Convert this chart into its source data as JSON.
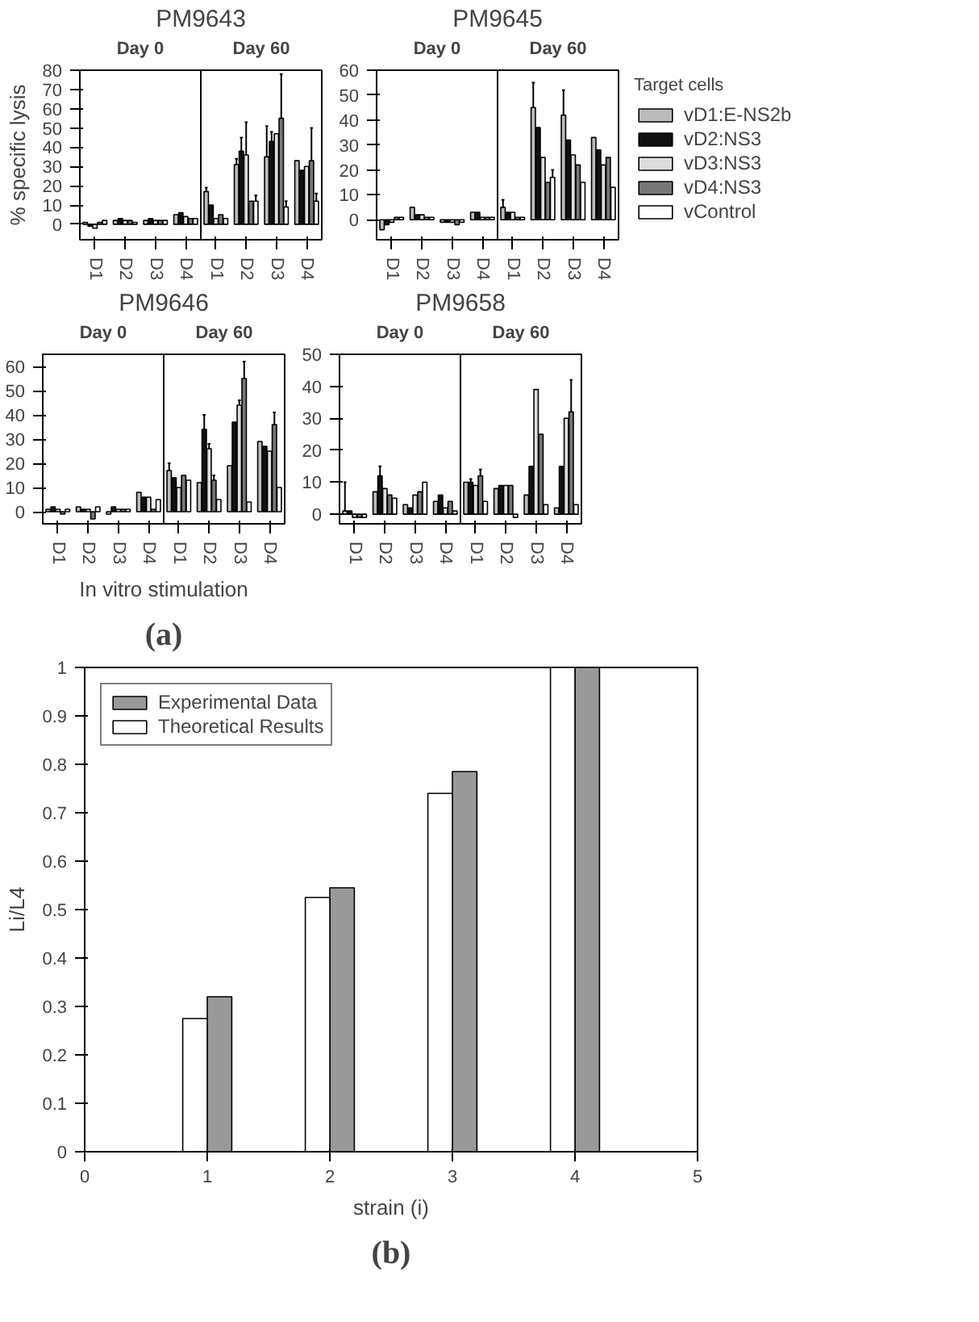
{
  "chart_data": [
    {
      "type": "bar",
      "title": "PM9643",
      "ylabel": "% specific lysis",
      "categories": [
        "D1",
        "D2",
        "D3",
        "D4",
        "D1",
        "D2",
        "D3",
        "D4"
      ],
      "annotations": [
        "Day 0",
        "Day 60"
      ],
      "ylim": [
        -8,
        80
      ],
      "yticks": [
        0,
        10,
        20,
        30,
        40,
        50,
        60,
        70,
        80
      ],
      "legend": false,
      "series": [
        {
          "color": "#bbbbbb",
          "values": [
            1,
            2,
            2,
            5,
            17,
            31,
            35,
            33
          ],
          "errors": [
            null,
            null,
            null,
            null,
            2,
            3,
            16,
            null
          ]
        },
        {
          "color": "#111111",
          "values": [
            -1,
            3,
            3,
            6,
            10,
            38,
            43,
            28
          ],
          "errors": [
            null,
            null,
            null,
            null,
            null,
            7,
            5,
            null
          ]
        },
        {
          "color": "#dddddd",
          "values": [
            -2,
            2,
            2,
            4,
            3,
            36,
            47,
            30
          ],
          "errors": [
            null,
            null,
            null,
            null,
            null,
            17,
            null,
            null
          ]
        },
        {
          "color": "#777777",
          "values": [
            1,
            2,
            2,
            3,
            5,
            12,
            55,
            33
          ],
          "errors": [
            null,
            null,
            null,
            null,
            null,
            null,
            23,
            17
          ]
        },
        {
          "color": "#ffffff",
          "values": [
            2,
            1,
            2,
            3,
            3,
            12,
            9,
            12
          ],
          "errors": [
            null,
            null,
            null,
            null,
            null,
            3,
            3,
            4
          ]
        }
      ]
    },
    {
      "type": "bar",
      "title": "PM9645",
      "categories": [
        "D1",
        "D2",
        "D3",
        "D4",
        "D1",
        "D2",
        "D3",
        "D4"
      ],
      "annotations": [
        "Day 0",
        "Day 60"
      ],
      "ylim": [
        -8,
        60
      ],
      "yticks": [
        0,
        10,
        20,
        30,
        40,
        50,
        60
      ],
      "legend": "right",
      "legend_title": "Target cells",
      "series": [
        {
          "name": "vD1:E-NS2b",
          "color": "#bbbbbb",
          "values": [
            -4,
            5,
            -1,
            3,
            5,
            45,
            42,
            33
          ],
          "errors": [
            null,
            null,
            null,
            null,
            3,
            10,
            10,
            null
          ]
        },
        {
          "name": "vD2:NS3",
          "color": "#111111",
          "values": [
            -2,
            2,
            -1,
            3,
            3,
            37,
            32,
            28
          ],
          "errors": [
            null,
            null,
            null,
            null,
            null,
            null,
            null,
            null
          ]
        },
        {
          "name": "vD3:NS3",
          "color": "#dddddd",
          "values": [
            -1,
            2,
            -1,
            1,
            3,
            25,
            26,
            22
          ],
          "errors": [
            null,
            null,
            null,
            null,
            null,
            null,
            null,
            null
          ]
        },
        {
          "name": "vD4:NS3",
          "color": "#777777",
          "values": [
            1,
            1,
            -2,
            1,
            1,
            15,
            22,
            25
          ],
          "errors": [
            null,
            null,
            null,
            null,
            null,
            null,
            null,
            null
          ]
        },
        {
          "name": "vControl",
          "color": "#ffffff",
          "values": [
            1,
            1,
            -1,
            1,
            1,
            17,
            15,
            13
          ],
          "errors": [
            null,
            null,
            null,
            null,
            null,
            3,
            null,
            null
          ]
        }
      ]
    },
    {
      "type": "bar",
      "title": "PM9646",
      "xlabel": "In vitro stimulation",
      "categories": [
        "D1",
        "D2",
        "D3",
        "D4",
        "D1",
        "D2",
        "D3",
        "D4"
      ],
      "annotations": [
        "Day 0",
        "Day 60",
        "(a)"
      ],
      "ylim": [
        -5,
        65
      ],
      "yticks": [
        0,
        10,
        20,
        30,
        40,
        50,
        60
      ],
      "legend": false,
      "series": [
        {
          "color": "#bbbbbb",
          "values": [
            1,
            2,
            -1,
            8,
            17,
            12,
            19,
            29
          ],
          "errors": [
            null,
            null,
            null,
            null,
            3,
            null,
            null,
            null
          ]
        },
        {
          "color": "#111111",
          "values": [
            2,
            1,
            2,
            6,
            14,
            34,
            37,
            27
          ],
          "errors": [
            null,
            null,
            null,
            null,
            null,
            6,
            null,
            null
          ]
        },
        {
          "color": "#dddddd",
          "values": [
            1,
            1,
            1,
            6,
            10,
            26,
            44,
            25
          ],
          "errors": [
            null,
            null,
            null,
            null,
            null,
            2,
            2,
            null
          ]
        },
        {
          "color": "#777777",
          "values": [
            -1,
            -3,
            1,
            1,
            15,
            13,
            55,
            36
          ],
          "errors": [
            null,
            null,
            null,
            null,
            null,
            2,
            7,
            5
          ]
        },
        {
          "color": "#ffffff",
          "values": [
            1,
            2,
            1,
            5,
            13,
            5,
            4,
            10
          ],
          "errors": [
            null,
            null,
            null,
            null,
            null,
            null,
            null,
            null
          ]
        }
      ]
    },
    {
      "type": "bar",
      "title": "PM9658",
      "categories": [
        "D1",
        "D2",
        "D3",
        "D4",
        "D1",
        "D2",
        "D3",
        "D4"
      ],
      "annotations": [
        "Day 0",
        "Day 60"
      ],
      "ylim": [
        -3,
        50
      ],
      "yticks": [
        0,
        10,
        20,
        30,
        40,
        50
      ],
      "legend": false,
      "series": [
        {
          "color": "#bbbbbb",
          "values": [
            1,
            7,
            3,
            4,
            10,
            8,
            6,
            2
          ],
          "errors": [
            9,
            null,
            null,
            null,
            null,
            null,
            null,
            null
          ]
        },
        {
          "color": "#111111",
          "values": [
            1,
            12,
            2,
            6,
            10,
            9,
            15,
            15
          ],
          "errors": [
            null,
            3,
            null,
            null,
            1,
            null,
            null,
            null
          ]
        },
        {
          "color": "#dddddd",
          "values": [
            -1,
            8,
            6,
            2,
            9,
            9,
            39,
            30
          ],
          "errors": [
            null,
            null,
            null,
            null,
            null,
            null,
            null,
            null
          ]
        },
        {
          "color": "#777777",
          "values": [
            -1,
            6,
            7,
            4,
            12,
            9,
            25,
            32
          ],
          "errors": [
            null,
            null,
            null,
            null,
            2,
            null,
            null,
            10
          ]
        },
        {
          "color": "#ffffff",
          "values": [
            -1,
            5,
            10,
            1,
            4,
            -1,
            3,
            3
          ],
          "errors": [
            null,
            null,
            null,
            null,
            null,
            null,
            null,
            null
          ]
        }
      ]
    },
    {
      "type": "bar",
      "xlabel": "strain (i)",
      "ylabel": "Li/L4",
      "annotations": [
        "(b)"
      ],
      "xlim": [
        0,
        5
      ],
      "xticks": [
        0,
        1,
        2,
        3,
        4,
        5
      ],
      "ylim": [
        0,
        1
      ],
      "yticks": [
        0,
        0.1,
        0.2,
        0.3,
        0.4,
        0.5,
        0.6,
        0.7,
        0.8,
        0.9,
        1
      ],
      "legend": "top left",
      "series": [
        {
          "name": "Experimental Data",
          "color": "#999999",
          "x": [
            1.1,
            2.1,
            3.1,
            4.1
          ],
          "values": [
            0.32,
            0.545,
            0.785,
            1.0
          ]
        },
        {
          "name": "Theoretical Results",
          "color": "#ffffff",
          "x": [
            0.9,
            1.9,
            2.9,
            3.9
          ],
          "values": [
            0.275,
            0.525,
            0.74,
            1.0
          ]
        }
      ]
    }
  ]
}
